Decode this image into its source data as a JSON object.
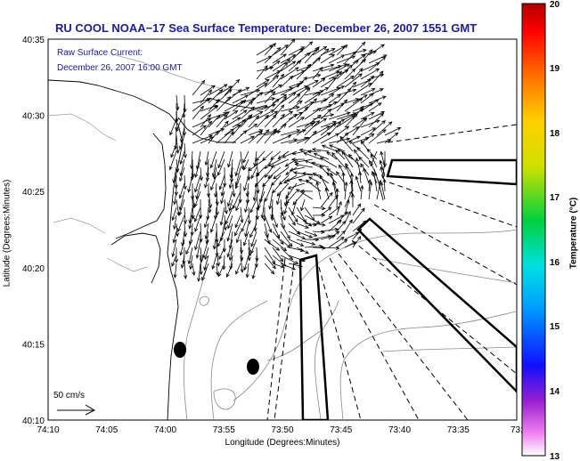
{
  "title": "RU COOL  NOAA−17  Sea Surface Temperature:  December 26, 2007 1551 GMT",
  "annotation": {
    "line1": "Raw Surface Current:",
    "line2": "December 26, 2007 16:00 GMT"
  },
  "scale": {
    "label": "50 cm/s"
  },
  "axes": {
    "xlabel": "Longitude (Degrees:Minutes)",
    "ylabel": "Latitude (Degrees:Minutes)",
    "xticks": [
      "74:10",
      "74:05",
      "74:00",
      "73:55",
      "73:50",
      "73:45",
      "73:40",
      "73:35",
      "73:3"
    ],
    "yticks": [
      "40:35",
      "40:30",
      "40:25",
      "40:20",
      "40:15",
      "40:10"
    ]
  },
  "colorbar": {
    "label": "Temperature (°C)",
    "min": 13,
    "max": 20,
    "ticks": [
      "20",
      "19",
      "18",
      "17",
      "16",
      "15",
      "14",
      "13"
    ]
  },
  "colors": {
    "title": "#1a1aa6",
    "land_outline": "#000000",
    "bathymetry": "#888888"
  }
}
